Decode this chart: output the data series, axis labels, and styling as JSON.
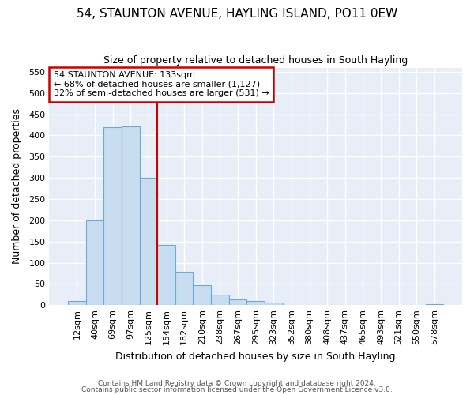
{
  "title": "54, STAUNTON AVENUE, HAYLING ISLAND, PO11 0EW",
  "subtitle": "Size of property relative to detached houses in South Hayling",
  "xlabel": "Distribution of detached houses by size in South Hayling",
  "ylabel": "Number of detached properties",
  "categories": [
    "12sqm",
    "40sqm",
    "69sqm",
    "97sqm",
    "125sqm",
    "154sqm",
    "182sqm",
    "210sqm",
    "238sqm",
    "267sqm",
    "295sqm",
    "323sqm",
    "352sqm",
    "380sqm",
    "408sqm",
    "437sqm",
    "465sqm",
    "493sqm",
    "521sqm",
    "550sqm",
    "578sqm"
  ],
  "values": [
    10,
    200,
    420,
    422,
    300,
    143,
    78,
    48,
    25,
    14,
    10,
    7,
    0,
    0,
    0,
    0,
    0,
    0,
    0,
    0,
    2
  ],
  "bar_color": "#c9ddf0",
  "bar_edge_color": "#6aaad4",
  "annotation_line1": "54 STAUNTON AVENUE: 133sqm",
  "annotation_line2": "← 68% of detached houses are smaller (1,127)",
  "annotation_line3": "32% of semi-detached houses are larger (531) →",
  "annotation_box_edgecolor": "#cc0000",
  "vline_position": 4.5,
  "vline_color": "#cc0000",
  "ylim": [
    0,
    560
  ],
  "yticks": [
    0,
    50,
    100,
    150,
    200,
    250,
    300,
    350,
    400,
    450,
    500,
    550
  ],
  "plot_bg_color": "#e8eef8",
  "fig_bg_color": "#ffffff",
  "grid_color": "#ffffff",
  "title_fontsize": 11,
  "subtitle_fontsize": 9,
  "footer_line1": "Contains HM Land Registry data © Crown copyright and database right 2024.",
  "footer_line2": "Contains public sector information licensed under the Open Government Licence v3.0."
}
